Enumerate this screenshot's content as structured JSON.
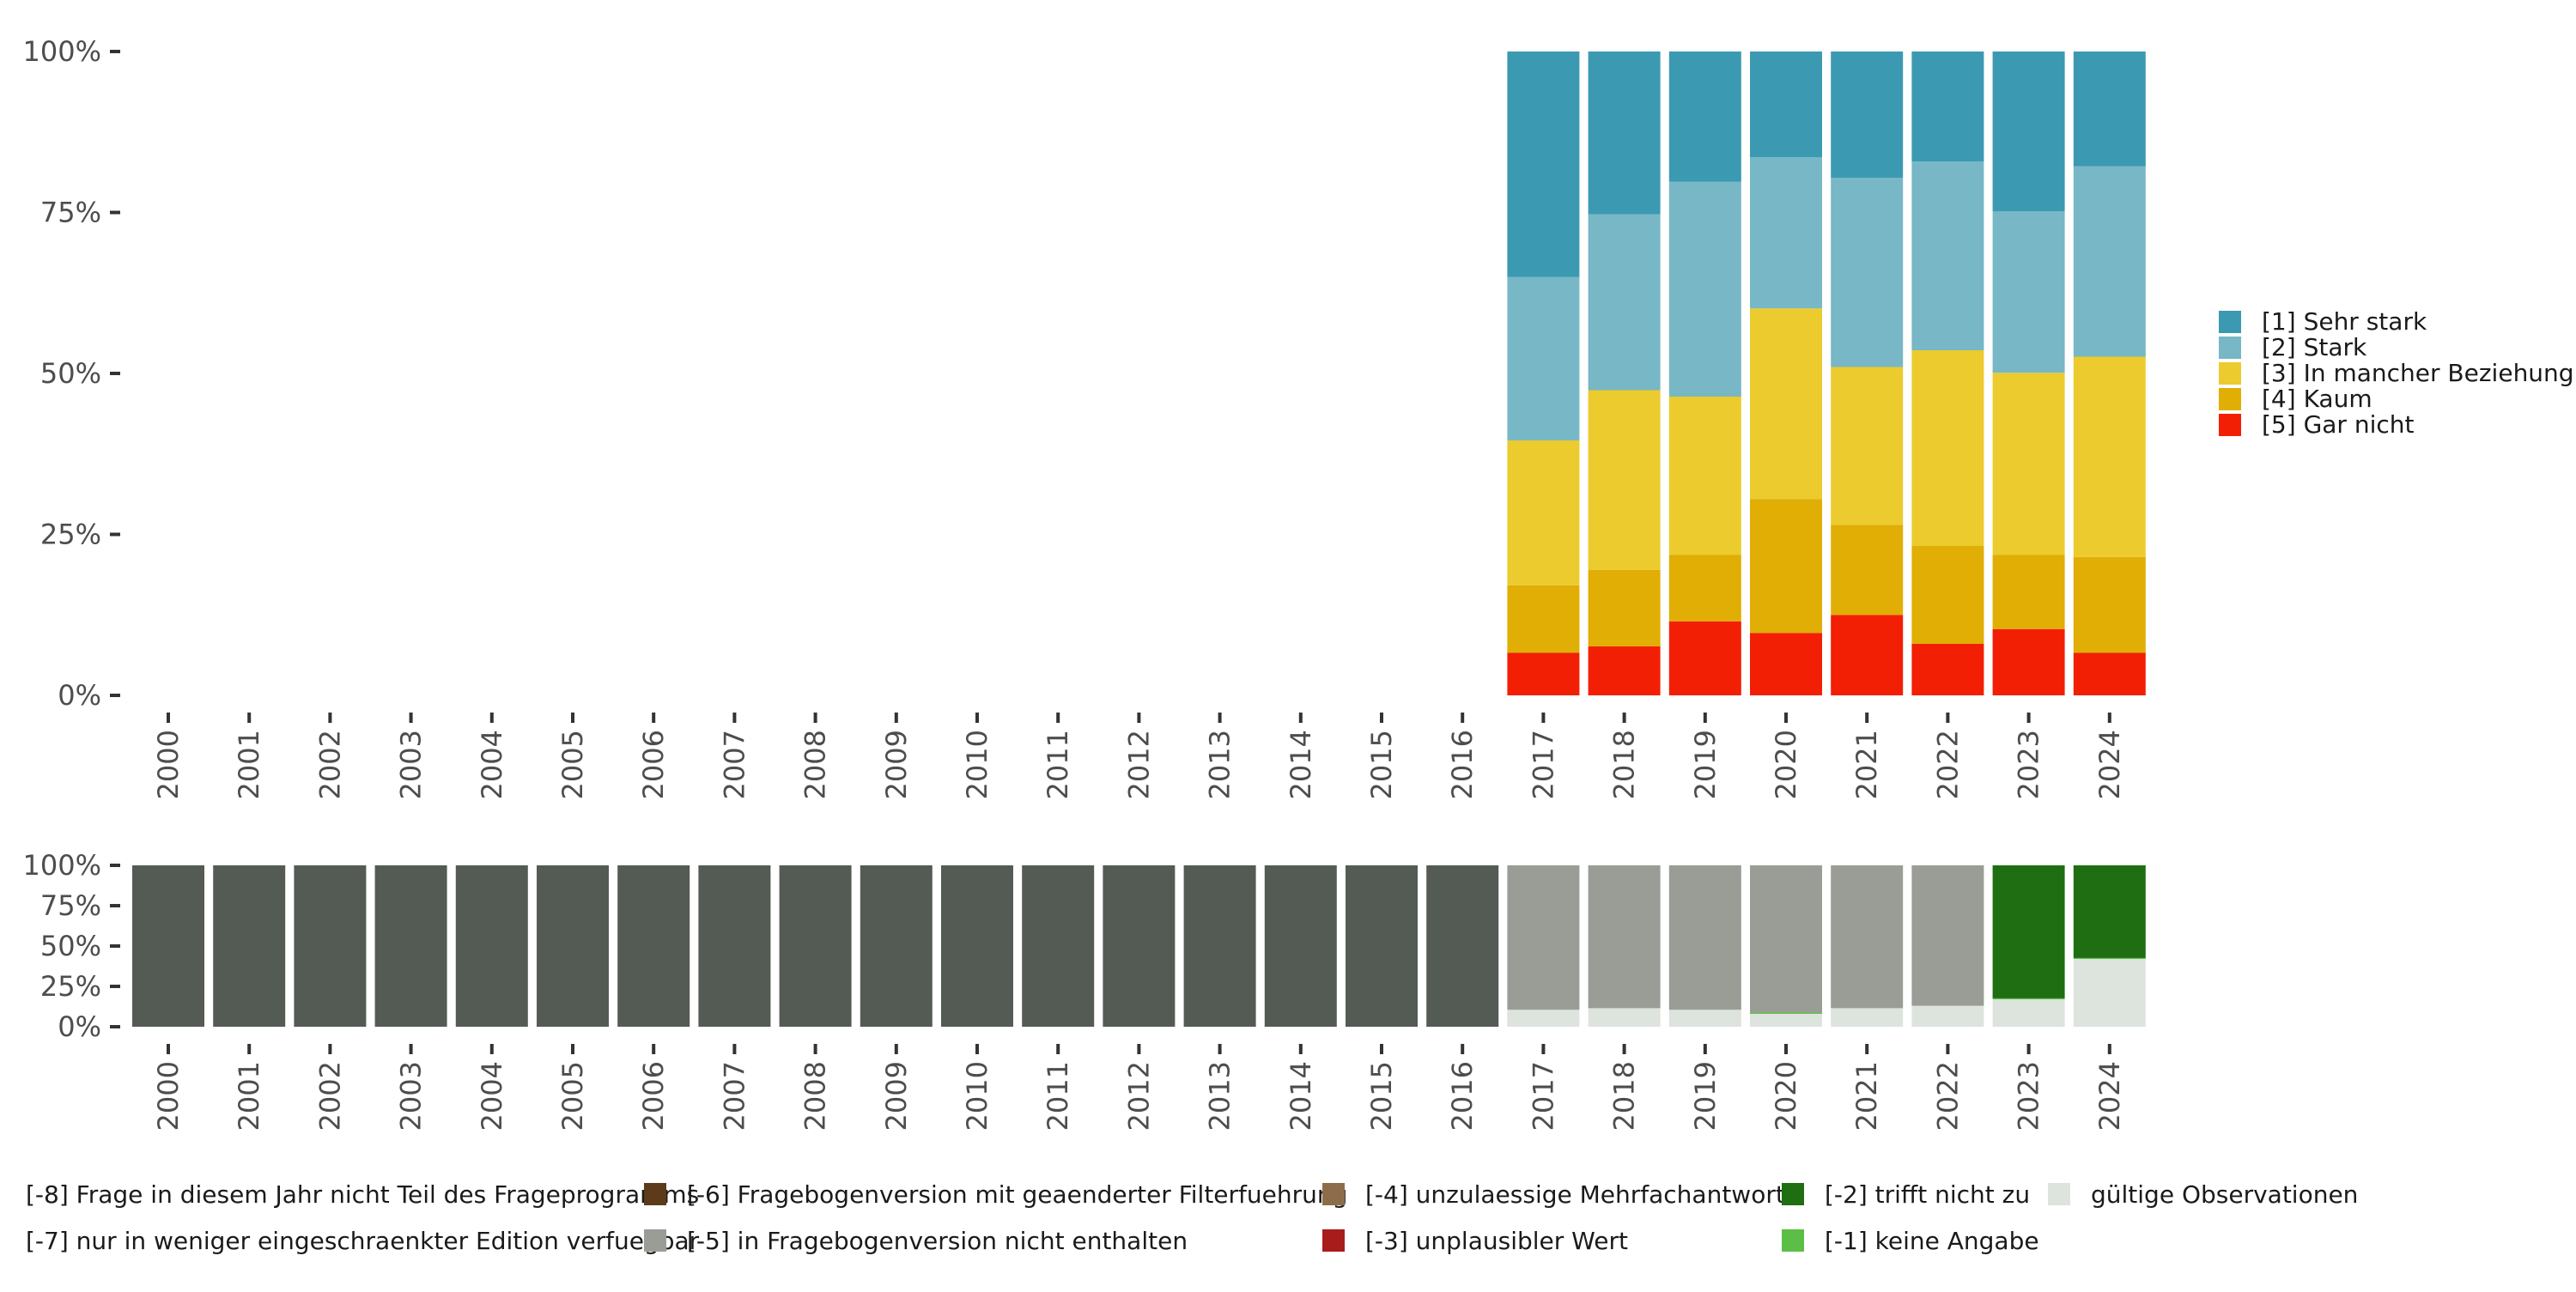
{
  "chart_data": [
    {
      "type": "bar",
      "stacked": true,
      "percent": true,
      "title": "",
      "xlabel": "",
      "ylabel": "",
      "ylim": [
        0,
        100
      ],
      "yticks": [
        "0%",
        "25%",
        "50%",
        "75%",
        "100%"
      ],
      "categories": [
        "2000",
        "2001",
        "2002",
        "2003",
        "2004",
        "2005",
        "2006",
        "2007",
        "2008",
        "2009",
        "2010",
        "2011",
        "2012",
        "2013",
        "2014",
        "2015",
        "2016",
        "2017",
        "2018",
        "2019",
        "2020",
        "2021",
        "2022",
        "2023",
        "2024"
      ],
      "series": [
        {
          "name": "[5] Gar nicht",
          "color": "#F21F05",
          "values": [
            null,
            null,
            null,
            null,
            null,
            null,
            null,
            null,
            null,
            null,
            null,
            null,
            null,
            null,
            null,
            null,
            null,
            6.6,
            7.6,
            11.5,
            9.7,
            12.5,
            8.0,
            10.3,
            6.6
          ]
        },
        {
          "name": "[4] Kaum",
          "color": "#E0AE05",
          "values": [
            null,
            null,
            null,
            null,
            null,
            null,
            null,
            null,
            null,
            null,
            null,
            null,
            null,
            null,
            null,
            null,
            null,
            10.5,
            11.9,
            10.3,
            20.8,
            14.0,
            15.2,
            11.5,
            14.9
          ]
        },
        {
          "name": "[3] In mancher Beziehung",
          "color": "#EBCB2E",
          "values": [
            null,
            null,
            null,
            null,
            null,
            null,
            null,
            null,
            null,
            null,
            null,
            null,
            null,
            null,
            null,
            null,
            null,
            22.5,
            27.9,
            24.6,
            29.6,
            24.5,
            30.4,
            28.3,
            31.1
          ]
        },
        {
          "name": "[2] Stark",
          "color": "#78B7C5",
          "values": [
            null,
            null,
            null,
            null,
            null,
            null,
            null,
            null,
            null,
            null,
            null,
            null,
            null,
            null,
            null,
            null,
            null,
            25.4,
            27.3,
            33.4,
            23.5,
            29.4,
            29.3,
            25.1,
            29.6
          ]
        },
        {
          "name": "[1] Sehr stark",
          "color": "#3B9AB2",
          "values": [
            null,
            null,
            null,
            null,
            null,
            null,
            null,
            null,
            null,
            null,
            null,
            null,
            null,
            null,
            null,
            null,
            null,
            35.0,
            25.3,
            20.2,
            16.4,
            19.6,
            17.1,
            24.8,
            17.8
          ]
        }
      ],
      "legend_position": "right"
    },
    {
      "type": "bar",
      "stacked": true,
      "percent": true,
      "title": "",
      "xlabel": "",
      "ylabel": "",
      "ylim": [
        0,
        100
      ],
      "yticks": [
        "0%",
        "25%",
        "50%",
        "75%",
        "100%"
      ],
      "categories": [
        "2000",
        "2001",
        "2002",
        "2003",
        "2004",
        "2005",
        "2006",
        "2007",
        "2008",
        "2009",
        "2010",
        "2011",
        "2012",
        "2013",
        "2014",
        "2015",
        "2016",
        "2017",
        "2018",
        "2019",
        "2020",
        "2021",
        "2022",
        "2023",
        "2024"
      ],
      "series": [
        {
          "name": "gültige Observationen",
          "color": "#DDE3DD",
          "values": [
            0,
            0,
            0,
            0,
            0,
            0,
            0,
            0,
            0,
            0,
            0,
            0,
            0,
            0,
            0,
            0,
            0,
            10.5,
            11.5,
            10.5,
            8.0,
            11.5,
            13.0,
            17.0,
            42.0
          ]
        },
        {
          "name": "[-1] keine Angabe",
          "color": "#5BBF47",
          "values": [
            0,
            0,
            0,
            0,
            0,
            0,
            0,
            0,
            0,
            0,
            0,
            0,
            0,
            0,
            0,
            0,
            0,
            0,
            0,
            0,
            0.8,
            0,
            0,
            0.6,
            0.6
          ]
        },
        {
          "name": "[-2] trifft nicht zu",
          "color": "#1F6E11",
          "values": [
            0,
            0,
            0,
            0,
            0,
            0,
            0,
            0,
            0,
            0,
            0,
            0,
            0,
            0,
            0,
            0,
            0,
            0,
            0,
            0,
            0,
            0,
            0,
            82.4,
            57.4
          ]
        },
        {
          "name": "[-3] unplausibler Wert",
          "color": "#A81C1C",
          "values": [
            0,
            0,
            0,
            0,
            0,
            0,
            0,
            0,
            0,
            0,
            0,
            0,
            0,
            0,
            0,
            0,
            0,
            0,
            0,
            0,
            0,
            0,
            0,
            0,
            0
          ]
        },
        {
          "name": "[-4] unzulaessige Mehrfachantwort",
          "color": "#8C6C4A",
          "values": [
            0,
            0,
            0,
            0,
            0,
            0,
            0,
            0,
            0,
            0,
            0,
            0,
            0,
            0,
            0,
            0,
            0,
            0,
            0,
            0,
            0,
            0,
            0,
            0,
            0
          ]
        },
        {
          "name": "[-5] in Fragebogenversion nicht enthalten",
          "color": "#999D96",
          "values": [
            0,
            0,
            0,
            0,
            0,
            0,
            0,
            0,
            0,
            0,
            0,
            0,
            0,
            0,
            0,
            0,
            0,
            89.5,
            88.5,
            89.5,
            91.2,
            88.5,
            87.0,
            0,
            0
          ]
        },
        {
          "name": "[-6] Fragebogenversion mit geaenderter Filterfuehrung",
          "color": "#5C3A1A",
          "values": [
            0,
            0,
            0,
            0,
            0,
            0,
            0,
            0,
            0,
            0,
            0,
            0,
            0,
            0,
            0,
            0,
            0,
            0,
            0,
            0,
            0,
            0,
            0,
            0,
            0
          ]
        },
        {
          "name": "[-7] nur in weniger eingeschraenkter Edition verfuegbar",
          "color": "#A4A4A0",
          "values": [
            0,
            0,
            0,
            0,
            0,
            0,
            0,
            0,
            0,
            0,
            0,
            0,
            0,
            0,
            0,
            0,
            0,
            0,
            0,
            0,
            0,
            0,
            0,
            0,
            0
          ]
        },
        {
          "name": "[-8] Frage in diesem Jahr nicht Teil des Frageprogramms",
          "color": "#545B54",
          "values": [
            100,
            100,
            100,
            100,
            100,
            100,
            100,
            100,
            100,
            100,
            100,
            100,
            100,
            100,
            100,
            100,
            100,
            0,
            0,
            0,
            0,
            0,
            0,
            0,
            0
          ]
        }
      ],
      "legend_position": "bottom",
      "legend_order": [
        "[-8] Frage in diesem Jahr nicht Teil des Frageprogramms",
        "[-7] nur in weniger eingeschraenkter Edition verfuegbar",
        "[-6] Fragebogenversion mit geaenderter Filterfuehrung",
        "[-5] in Fragebogenversion nicht enthalten",
        "[-4] unzulaessige Mehrfachantwort",
        "[-3] unplausibler Wert",
        "[-2] trifft nicht zu",
        "[-1] keine Angabe",
        "gültige Observationen"
      ]
    }
  ]
}
